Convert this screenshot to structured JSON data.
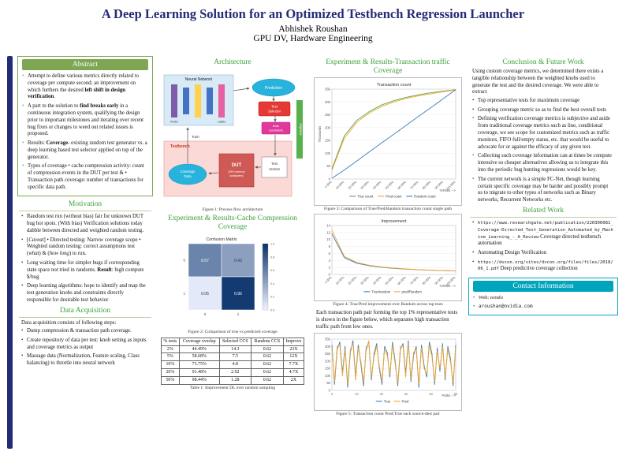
{
  "header": {
    "title": "A Deep Learning Solution for an Optimized Testbench Regression Launcher",
    "author": "Abhishek Roushan",
    "affiliation": "GPU DV, Hardware Engineering"
  },
  "abstract": {
    "title": "Abstract",
    "bullets": [
      "Attempt to define various metrics directly related to coverage per compute second; an improvement on which furthers the desired <b>left shift in design verification</b>.",
      "A part to the solution to <b>find breaks early</b> in a continuous integration system, qualifying the design prior to important milestones and iterating over recent bug fixes or changes to weed out related issues is proposed.",
      "Results: <b>Coverage</b>- existing random test generator vs. a deep learning based test selector applied on top of the generator.",
      "Types of coverage &bull; cache compression activity: count of compression events in the DUT per test &amp; &bull; Transaction path coverage: number of transactions for specific data path."
    ]
  },
  "motivation": {
    "title": "Motivation",
    "bullets": [
      "Random test run (without bias) fair for unknown DUT bug hot spots. (With bias) Verification solutions today dabble between directed and weighted random testing.",
      "[<i>Caveat</i>] &bull; Directed testing: Narrow coverage scope &bull; Weighted random testing: correct assumptions test (<i>what</i>) &amp; (<i>how long</i>) to run.",
      "Long waiting time for simpler bugs if corresponding state space not tried in randoms. <b>Result</b>: high compute $/bug",
      "Deep learning algorithms: hope to identify and map the test generation knobs and constraints directly responsible for desirable test behavior"
    ]
  },
  "data_acquisition": {
    "title": "Data Acquisition",
    "intro": "Data acquisition consists of following steps:",
    "steps": [
      "Dump compression &amp; transaction path coverage.",
      "Create repository of data per test: knob setting as inputs and coverage metrics as output",
      "Massage data (Normalization, Feature scaling, Class balancing) to throttle into neural network"
    ]
  },
  "architecture": {
    "title": "Architecture",
    "caption": "Figure 1: Process flow architecture",
    "labels": {
      "neural_network": "Neural Network",
      "knobs": "Knobs",
      "labels": "Labels",
      "prediction": "Prediction",
      "test_selector_1": "Test",
      "test_selector_2": "Selector",
      "train": "Train",
      "tests_constraints_1": "tests",
      "tests_constraints_2": "constraints",
      "improve": "Improve",
      "testbench": "Testbench",
      "coverage_data_1": "Coverage",
      "coverage_data_2": "Data",
      "dut": "DUT",
      "dut_sub_1": "(GPU memory",
      "dut_sub_2": "subsystem)",
      "test_vectors_1": "Test",
      "test_vectors_2": "Vectors"
    }
  },
  "cache_results": {
    "title": "Experiment & Results-Cache Compression Coverage",
    "figure_caption": "Figure 2: Comparison of true vs predicted coverage",
    "table_caption": "Table 1: Improvement DL over random sampling",
    "table": {
      "headers": [
        "% tests",
        "Coverage overlap",
        "Selected CCS",
        "Random CCS",
        "Improve"
      ],
      "rows": [
        [
          "2%",
          "44.49%",
          "14.3",
          "0.62",
          "23X"
        ],
        [
          "5%",
          "58.68%",
          "7.5",
          "0.62",
          "12X"
        ],
        [
          "10%",
          "73.75%",
          "4.8",
          "0.62",
          "7.7X"
        ],
        [
          "20%",
          "91.48%",
          "2.92",
          "0.62",
          "4.7X"
        ],
        [
          "50%",
          "98.44%",
          "1.28",
          "0.62",
          "2X"
        ]
      ]
    }
  },
  "transaction_results": {
    "title": "Experiment & Results-Transaction traffic Coverage",
    "fig3_caption": "Figure 3: Comparison of True/Pred/Random transaction count single path",
    "fig4_caption": "Figure 4: True/Pred improvement over Random across top tests",
    "paragraph": "Each transaction path pair forming the top 1% representative tests is shown in the figure below, which separates high transaction traffic path from low ones.",
    "fig5_caption": "Figure 5: Transaction count Pred/True each source-dest pair"
  },
  "conclusion": {
    "title": "Conclusion & Future Work",
    "intro": "Using custom coverage metrics, we determined there exists a tangible relationship between the weighted knobs used to generate the test and the desired coverage. We were able to extract",
    "bullets_top": [
      "Top representative tests for maximum coverage",
      "Grouping coverage metric so as to find the best overall tests"
    ],
    "bullets_green": [
      "Defining verification coverage metrics is subjective and aside from traditional coverage metrics such as line, conditional coverage, we see scope for customized metrics such as traffic monitors, FIFO full/empty status, etc. that would be useful to advocate for or against the efficacy of any given test.",
      "Collecting such coverage information can at times be compute intensive so cheaper alternatives allowing us to integrate this into the periodic bug hunting regressions would be key.",
      "The current network is a simple FC-Net, though learning certain specific coverage may be harder and possibly prompt us to migrate to other types of networks such as Binary networks, Recurrent Networks etc."
    ]
  },
  "related": {
    "title": "Related Work",
    "items": [
      {
        "url": "https://www.researchgate.net/publication/220306081_Coverage-Directed_Test_Generation_Automated_by_Machine_Learning_-_A_Review",
        "desc": "Coverage directed testbench automation"
      },
      {
        "url": "",
        "desc": "Automating Design Verification"
      },
      {
        "url": "https://dvcon.org/sites/dvcon.org/files/files/2018/06_1.pdf",
        "desc": "Deep predictive coverage collection"
      }
    ]
  },
  "contact": {
    "title": "Contact Information",
    "items": [
      "Web: nvinfo",
      "aroushan@nvidia.com"
    ]
  },
  "chart_data": [
    {
      "id": "fig2",
      "type": "heatmap",
      "title": "Confusion Matrix",
      "x_labels": [
        "0",
        "1"
      ],
      "y_labels": [
        "0",
        "1"
      ],
      "values": [
        [
          0.57,
          0.43
        ],
        [
          0.05,
          0.95
        ]
      ],
      "colorbar": true
    },
    {
      "id": "fig3",
      "type": "line",
      "title": "Transaction count",
      "ylabel": "Thousands",
      "xlabel": "%Tests -->",
      "x_ticks": [
        "1.00%",
        "10.00%",
        "20.00%",
        "30.00%",
        "40.00%",
        "50.00%",
        "60.00%",
        "70.00%",
        "80.00%",
        "90.00%",
        "100.00%"
      ],
      "rotate_ticks": true,
      "ylim": [
        0,
        350
      ],
      "y_ticks": [
        0,
        50,
        100,
        150,
        200,
        250,
        300,
        350
      ],
      "series": [
        {
          "name": "True count",
          "color": "#55a84f",
          "values": [
            40,
            168,
            228,
            262,
            288,
            305,
            318,
            328,
            336,
            342,
            348
          ]
        },
        {
          "name": "Pred count",
          "color": "#f4a62a",
          "values": [
            34,
            158,
            220,
            256,
            282,
            300,
            314,
            324,
            332,
            340,
            347
          ]
        },
        {
          "name": "Random count",
          "color": "#3a7ec1",
          "values": [
            3,
            35,
            70,
            105,
            140,
            174,
            209,
            244,
            278,
            313,
            348
          ]
        }
      ],
      "legend_position": "bottom"
    },
    {
      "id": "fig4",
      "type": "line",
      "title": "Improvement",
      "xlabel": "%Tests -->",
      "x_ticks": [
        "1.00%",
        "10.00%",
        "20.00%",
        "30.00%",
        "40.00%",
        "50.00%",
        "60.00%",
        "70.00%",
        "80.00%",
        "90.00%",
        "100.00%"
      ],
      "rotate_ticks": true,
      "ylim": [
        0,
        14
      ],
      "y_ticks": [
        0,
        2,
        4,
        6,
        8,
        10,
        12,
        14
      ],
      "series": [
        {
          "name": "True/random",
          "color": "#3a7ec1",
          "values": [
            11.6,
            4.8,
            3.2,
            2.5,
            2.05,
            1.75,
            1.52,
            1.34,
            1.2,
            1.09,
            1.0
          ]
        },
        {
          "name": "pred/Random",
          "color": "#f4a62a",
          "values": [
            12.6,
            5.2,
            3.45,
            2.65,
            2.17,
            1.83,
            1.58,
            1.38,
            1.23,
            1.11,
            1.0
          ]
        }
      ],
      "legend_position": "bottom"
    },
    {
      "id": "fig5",
      "type": "line",
      "xlabel": "Paths -->",
      "x_ticks": [
        "0",
        "10",
        "20",
        "30",
        "40",
        "50"
      ],
      "rotate_ticks": false,
      "ylim": [
        0,
        350
      ],
      "y_ticks": [
        0,
        50,
        100,
        150,
        200,
        250,
        300,
        350
      ],
      "series": [
        {
          "name": "True",
          "color": "#3a7ec1",
          "values": [
            310,
            40,
            280,
            330,
            120,
            300,
            20,
            260,
            340,
            90,
            310,
            180,
            30,
            290,
            330,
            70,
            250,
            320,
            150,
            40,
            300,
            260,
            90,
            330,
            200,
            30,
            280,
            320,
            110,
            340,
            60,
            240,
            300,
            20,
            310,
            170,
            90,
            330,
            250,
            40,
            290,
            130,
            320,
            70,
            300,
            220,
            30,
            310
          ]
        },
        {
          "name": "Pred",
          "color": "#f4a62a",
          "values": [
            290,
            60,
            300,
            310,
            100,
            280,
            45,
            280,
            320,
            70,
            290,
            200,
            55,
            270,
            340,
            90,
            230,
            300,
            170,
            60,
            280,
            240,
            110,
            310,
            180,
            50,
            300,
            300,
            90,
            320,
            80,
            260,
            280,
            45,
            290,
            150,
            110,
            310,
            230,
            60,
            270,
            150,
            300,
            90,
            280,
            200,
            55,
            290
          ]
        }
      ],
      "legend_position": "bottom"
    }
  ]
}
